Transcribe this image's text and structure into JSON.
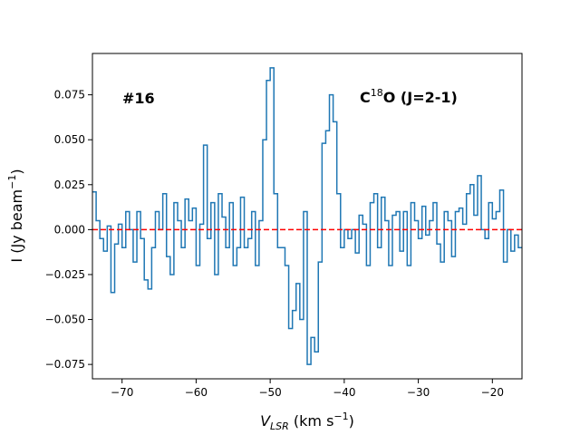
{
  "chart_data": {
    "type": "step",
    "xlabel": [
      "V",
      "LSR",
      " (km s",
      "−1",
      ")"
    ],
    "ylabel": [
      "I (Jy beam",
      "−1",
      ")"
    ],
    "annotations": [
      [
        "#16"
      ],
      [
        "C",
        "18",
        "O (J=2-1)"
      ]
    ],
    "x_start": -73.75,
    "x_step": 0.5,
    "series": [
      {
        "color": "#1f77b4",
        "values": [
          0.021,
          0.005,
          -0.005,
          -0.012,
          0.002,
          -0.035,
          -0.008,
          0.003,
          -0.01,
          0.01,
          0.0,
          -0.018,
          0.01,
          -0.005,
          -0.028,
          -0.033,
          -0.01,
          0.01,
          0.0,
          0.02,
          -0.015,
          -0.025,
          0.015,
          0.005,
          -0.01,
          0.017,
          0.005,
          0.012,
          -0.02,
          0.003,
          0.047,
          -0.005,
          0.015,
          -0.025,
          0.02,
          0.007,
          -0.01,
          0.015,
          -0.02,
          -0.01,
          0.018,
          -0.01,
          -0.005,
          0.01,
          -0.02,
          0.005,
          0.05,
          0.083,
          0.09,
          0.02,
          -0.01,
          -0.01,
          -0.02,
          -0.055,
          -0.045,
          -0.03,
          -0.05,
          0.01,
          -0.075,
          -0.06,
          -0.068,
          -0.018,
          0.048,
          0.055,
          0.075,
          0.06,
          0.02,
          -0.01,
          0.0,
          -0.005,
          0.0,
          -0.013,
          0.008,
          0.003,
          -0.02,
          0.015,
          0.02,
          -0.01,
          0.018,
          0.005,
          -0.02,
          0.008,
          0.01,
          -0.012,
          0.01,
          -0.02,
          0.015,
          0.005,
          -0.005,
          0.013,
          -0.003,
          0.005,
          0.015,
          -0.008,
          -0.018,
          0.01,
          0.005,
          -0.015,
          0.01,
          0.012,
          0.003,
          0.02,
          0.025,
          0.008,
          0.03,
          0.0,
          -0.005,
          0.015,
          0.006,
          0.01,
          0.022,
          -0.018,
          0.0,
          -0.012,
          -0.003,
          -0.01
        ]
      }
    ],
    "hline": {
      "value": 0,
      "color": "#ff0000"
    },
    "xlim": [
      -74,
      -16
    ],
    "ylim": [
      -0.083,
      0.098
    ],
    "xticks": [
      {
        "value": -70,
        "label": "−70"
      },
      {
        "value": -60,
        "label": "−60"
      },
      {
        "value": -50,
        "label": "−50"
      },
      {
        "value": -40,
        "label": "−40"
      },
      {
        "value": -30,
        "label": "−30"
      },
      {
        "value": -20,
        "label": "−20"
      }
    ],
    "yticks": [
      {
        "value": -0.075,
        "label": "−0.075"
      },
      {
        "value": -0.05,
        "label": "−0.050"
      },
      {
        "value": -0.025,
        "label": "−0.025"
      },
      {
        "value": 0,
        "label": "0.000"
      },
      {
        "value": 0.025,
        "label": "0.025"
      },
      {
        "value": 0.05,
        "label": "0.050"
      },
      {
        "value": 0.075,
        "label": "0.075"
      }
    ]
  }
}
